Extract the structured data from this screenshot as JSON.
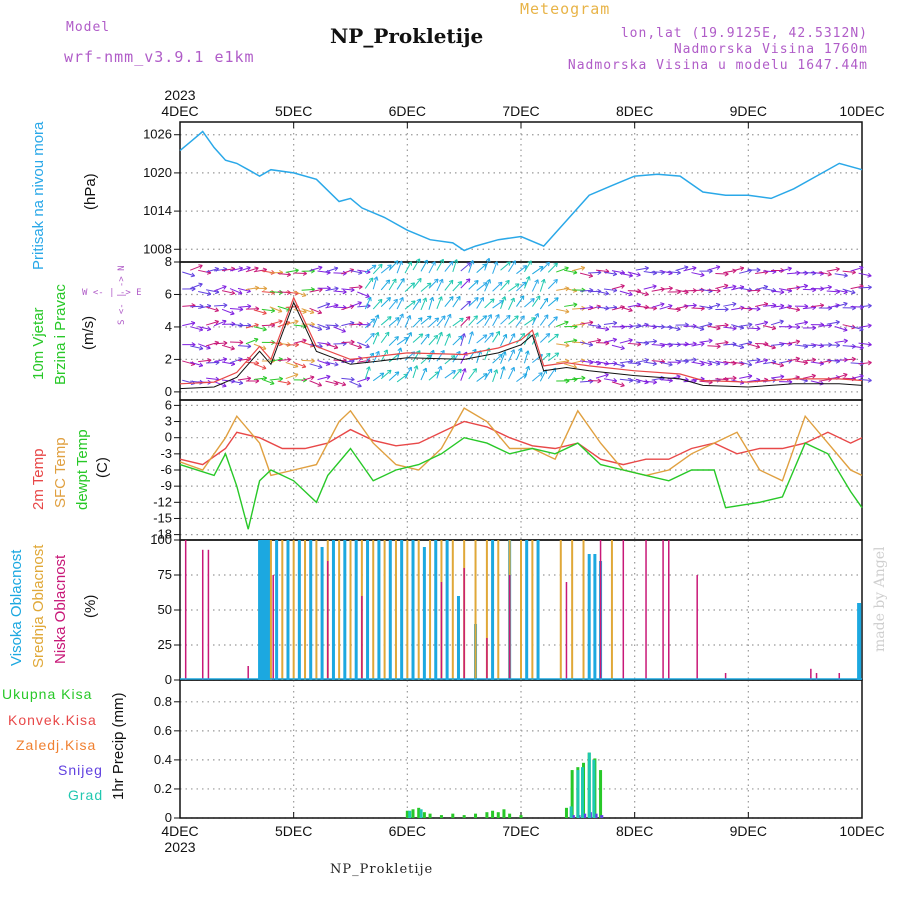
{
  "header": {
    "model_label": "Model",
    "model_name": "wrf-nmm_v3.9.1 e1km",
    "title": "NP_Prokletije",
    "meteogram_label": "Meteogram",
    "lonlat": "lon,lat (19.9125E, 42.5312N)",
    "elevation": "Nadmorska Visina 1760m",
    "model_elevation": "Nadmorska Visina u modelu 1647.44m"
  },
  "footer": {
    "station": "NP_Prokletije",
    "credit": "made by Angel"
  },
  "time_axis": {
    "year": "2023",
    "ticks": [
      "4DEC",
      "5DEC",
      "6DEC",
      "7DEC",
      "8DEC",
      "9DEC",
      "10DEC"
    ]
  },
  "panel_labels": {
    "pressure": [
      "Pritisak na nivou mora",
      "(hPa)"
    ],
    "wind": [
      "10m Vjetar",
      "Brzina i Pravac",
      "(m/s)"
    ],
    "wind_compass": "W <- | -> E",
    "wind_compass_ns": "S <- | -> N",
    "temp": [
      "2m Temp",
      "SFC Temp",
      "dewpt Temp",
      "(C)"
    ],
    "cloud": [
      "Visoka Oblacnost",
      "Srednja Oblacnost",
      "Niska Oblacnost",
      "(%)"
    ],
    "precip_unit": "1hr Precip (mm)",
    "precip_legend": [
      "Ukupna Kisa",
      "Konvek.Kisa",
      "Zaledj.Kisa",
      "Snijeg",
      "Grad"
    ]
  },
  "colors": {
    "pressure": "#2aa8e8",
    "temp2m": "#e84848",
    "sfc": "#e0a040",
    "dewpt": "#28c828",
    "cloud_high": "#1ca8e0",
    "cloud_mid": "#e0a838",
    "cloud_low": "#c81878",
    "precip_total": "#28c828",
    "precip_conv": "#e84848",
    "precip_frz": "#f08030",
    "precip_snow": "#6040e0",
    "precip_grad": "#20c8b0",
    "header_purple": "#b05cc8"
  },
  "chart_data": [
    {
      "type": "line",
      "title": "Pritisak na nivou mora",
      "ylabel": "(hPa)",
      "ylim": [
        1006,
        1028
      ],
      "yticks": [
        1008,
        1014,
        1020,
        1026
      ],
      "x_unit": "days since 4DEC 00",
      "series": [
        {
          "name": "Pritisak na nivou mora",
          "x": [
            0,
            0.1,
            0.2,
            0.3,
            0.4,
            0.5,
            0.6,
            0.7,
            0.8,
            1.0,
            1.2,
            1.4,
            1.5,
            1.6,
            1.8,
            2.0,
            2.2,
            2.4,
            2.5,
            2.6,
            2.8,
            3.0,
            3.2,
            3.4,
            3.6,
            3.8,
            4.0,
            4.2,
            4.4,
            4.6,
            4.8,
            5.0,
            5.2,
            5.4,
            5.6,
            5.8,
            6.0
          ],
          "y": [
            1023.5,
            1025,
            1026.5,
            1024,
            1022,
            1021.5,
            1020.5,
            1019.5,
            1020.5,
            1020,
            1019,
            1015.5,
            1016,
            1014.5,
            1013,
            1011,
            1009.5,
            1009,
            1007.8,
            1008.5,
            1009.5,
            1010,
            1008.5,
            1012.5,
            1016.5,
            1018,
            1019.5,
            1019.8,
            1019.5,
            1017,
            1016.5,
            1016.5,
            1016,
            1017.5,
            1019.5,
            1021.5,
            1020.5
          ]
        }
      ]
    },
    {
      "type": "line",
      "title": "10m Vjetar Brzina i Pravac",
      "ylabel": "(m/s)",
      "ylim": [
        -0.5,
        8
      ],
      "yticks": [
        0,
        2,
        4,
        6,
        8
      ],
      "x_unit": "days since 4DEC 00",
      "series": [
        {
          "name": "Brzina",
          "x": [
            0,
            0.3,
            0.5,
            0.7,
            0.8,
            1.0,
            1.2,
            1.5,
            2.0,
            2.5,
            2.8,
            3.0,
            3.1,
            3.2,
            3.4,
            3.6,
            4.0,
            4.4,
            4.6,
            5.0,
            5.4,
            5.8,
            6.0
          ],
          "y": [
            0.5,
            0.6,
            1.2,
            2.8,
            2.0,
            5.8,
            2.8,
            2.0,
            2.4,
            2.3,
            2.7,
            3.2,
            3.8,
            1.6,
            1.8,
            1.6,
            1.3,
            1.1,
            0.7,
            0.6,
            0.8,
            0.8,
            0.7
          ]
        }
      ]
    },
    {
      "type": "line",
      "title": "2m Temp / SFC Temp / dewpt Temp",
      "ylabel": "(C)",
      "ylim": [
        -19,
        7
      ],
      "yticks": [
        6,
        3,
        0,
        -3,
        -6,
        -9,
        -12,
        -15,
        -18
      ],
      "x_unit": "days since 4DEC 00",
      "series": [
        {
          "name": "2m Temp",
          "x": [
            0,
            0.2,
            0.4,
            0.5,
            0.7,
            0.9,
            1.1,
            1.3,
            1.5,
            1.7,
            1.9,
            2.1,
            2.3,
            2.5,
            2.7,
            2.9,
            3.1,
            3.3,
            3.5,
            3.7,
            3.9,
            4.1,
            4.3,
            4.5,
            4.7,
            4.9,
            5.1,
            5.3,
            5.5,
            5.7,
            5.9,
            6.0
          ],
          "y": [
            -4,
            -5,
            -2,
            1,
            0,
            -2,
            -2,
            -1,
            1.5,
            -0.5,
            -1.5,
            -1,
            1,
            3,
            2,
            0,
            -1.5,
            -2,
            -1,
            -4,
            -5,
            -4,
            -4,
            -2,
            -1,
            -3,
            -2,
            -2,
            -1,
            1,
            -1,
            0
          ]
        },
        {
          "name": "SFC Temp",
          "x": [
            0,
            0.2,
            0.4,
            0.5,
            0.7,
            0.8,
            1.0,
            1.2,
            1.4,
            1.5,
            1.7,
            1.9,
            2.1,
            2.3,
            2.5,
            2.7,
            2.9,
            3.1,
            3.3,
            3.5,
            3.7,
            3.9,
            4.1,
            4.3,
            4.5,
            4.7,
            4.9,
            5.1,
            5.3,
            5.5,
            5.7,
            5.9,
            6.0
          ],
          "y": [
            -4.5,
            -6,
            0,
            4,
            -1,
            -7,
            -6,
            -5,
            3,
            5,
            -1,
            -5,
            -6,
            -2,
            5.5,
            3,
            -2,
            -2,
            -4,
            5,
            -1,
            -6,
            -7,
            -6,
            -3,
            -1,
            1,
            -6,
            -8,
            4,
            -1,
            -6,
            -7
          ]
        },
        {
          "name": "dewpt Temp",
          "x": [
            0,
            0.3,
            0.4,
            0.5,
            0.6,
            0.7,
            0.8,
            1.0,
            1.2,
            1.3,
            1.5,
            1.7,
            1.9,
            2.1,
            2.3,
            2.5,
            2.7,
            2.9,
            3.1,
            3.3,
            3.5,
            3.7,
            3.9,
            4.1,
            4.3,
            4.5,
            4.7,
            4.8,
            5.1,
            5.3,
            5.5,
            5.7,
            5.9,
            6.0
          ],
          "y": [
            -5,
            -7,
            -3,
            -9,
            -17,
            -8,
            -6,
            -8,
            -12,
            -7,
            -2,
            -8,
            -6,
            -5,
            -3,
            0,
            -1,
            -3,
            -2,
            -3,
            -1,
            -5,
            -6,
            -7,
            -8,
            -6,
            -6,
            -13,
            -12,
            -11,
            -1,
            -3,
            -10,
            -13
          ]
        }
      ]
    },
    {
      "type": "bar",
      "title": "Oblacnost",
      "ylabel": "(%)",
      "ylim": [
        0,
        100
      ],
      "yticks": [
        0,
        25,
        50,
        75,
        100
      ],
      "x_unit": "days since 4DEC 00",
      "series": [
        {
          "name": "Visoka Oblacnost",
          "x": [
            0.7,
            0.72,
            0.74,
            0.76,
            0.78,
            0.85,
            0.95,
            1.05,
            1.15,
            1.25,
            1.35,
            1.45,
            1.55,
            1.65,
            1.75,
            1.85,
            1.95,
            2.05,
            2.15,
            2.25,
            2.35,
            2.45,
            2.6,
            2.75,
            2.9,
            3.05,
            3.15,
            3.6,
            3.65,
            3.7,
            5.97,
            5.98
          ],
          "y": [
            100,
            100,
            100,
            100,
            100,
            100,
            100,
            100,
            100,
            95,
            100,
            100,
            100,
            100,
            100,
            100,
            100,
            100,
            95,
            100,
            100,
            60,
            40,
            100,
            100,
            100,
            100,
            90,
            90,
            85,
            55,
            55
          ]
        },
        {
          "name": "Srednja Oblacnost",
          "x": [
            0.8,
            0.9,
            1.0,
            1.1,
            1.2,
            1.3,
            1.4,
            1.5,
            1.6,
            1.7,
            1.8,
            1.9,
            2.0,
            2.1,
            2.2,
            2.3,
            2.4,
            2.5,
            2.6,
            2.7,
            2.8,
            2.9,
            3.0,
            3.1,
            3.35,
            3.45,
            3.55,
            3.8
          ],
          "y": [
            100,
            100,
            100,
            100,
            100,
            100,
            100,
            100,
            100,
            100,
            100,
            100,
            100,
            100,
            100,
            100,
            100,
            100,
            100,
            100,
            100,
            100,
            100,
            100,
            100,
            100,
            100,
            100
          ]
        },
        {
          "name": "Niska Oblacnost",
          "x": [
            0.05,
            0.2,
            0.25,
            0.6,
            0.82,
            1.3,
            1.6,
            2.3,
            2.5,
            2.7,
            2.9,
            3.4,
            3.7,
            3.9,
            4.1,
            4.25,
            4.3,
            4.55,
            4.8,
            5.55,
            5.6,
            5.8
          ],
          "y": [
            100,
            93,
            93,
            10,
            75,
            85,
            60,
            70,
            80,
            30,
            75,
            70,
            100,
            100,
            100,
            100,
            100,
            75,
            5,
            8,
            5,
            5
          ]
        }
      ]
    },
    {
      "type": "bar",
      "title": "1hr Precip",
      "ylabel": "1hr Precip (mm)",
      "ylim": [
        0,
        0.95
      ],
      "yticks": [
        0,
        0.2,
        0.4,
        0.6,
        0.8
      ],
      "x_unit": "days since 4DEC 00",
      "series": [
        {
          "name": "Ukupna Kisa",
          "x": [
            2.0,
            2.05,
            2.1,
            2.15,
            2.2,
            2.3,
            2.4,
            2.5,
            2.6,
            2.7,
            2.75,
            2.8,
            2.85,
            2.9,
            3.0,
            3.4,
            3.45,
            3.5,
            3.55,
            3.6,
            3.65,
            3.7
          ],
          "y": [
            0.05,
            0.06,
            0.07,
            0.04,
            0.03,
            0.02,
            0.03,
            0.02,
            0.03,
            0.04,
            0.05,
            0.04,
            0.06,
            0.03,
            0.02,
            0.07,
            0.33,
            0.35,
            0.38,
            0.45,
            0.41,
            0.33
          ]
        },
        {
          "name": "Snijeg",
          "x": [
            3.45,
            3.5,
            3.55,
            3.6,
            3.65,
            3.7
          ],
          "y": [
            0.02,
            0.02,
            0.03,
            0.04,
            0.03,
            0.02
          ]
        },
        {
          "name": "Grad",
          "x": [
            2.0,
            2.1,
            3.42,
            3.48,
            3.52,
            3.58,
            3.62
          ],
          "y": [
            0.05,
            0.06,
            0.08,
            0.33,
            0.35,
            0.45,
            0.4
          ]
        }
      ]
    }
  ]
}
